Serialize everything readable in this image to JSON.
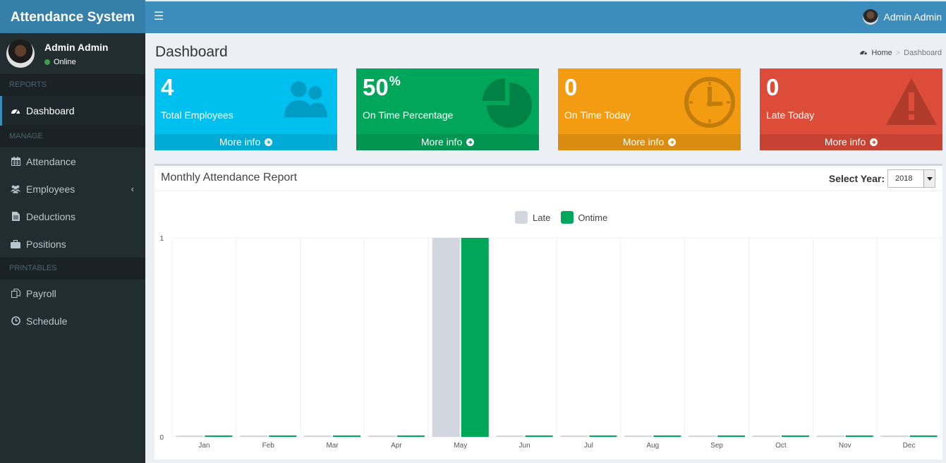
{
  "app": {
    "title": "Attendance System"
  },
  "navbar": {
    "user_name": "Admin Admin"
  },
  "sidebar": {
    "user": {
      "name": "Admin Admin",
      "status": "Online"
    },
    "sections": {
      "reports": "REPORTS",
      "manage": "MANAGE",
      "printables": "PRINTABLES"
    },
    "items": {
      "dashboard": "Dashboard",
      "attendance": "Attendance",
      "employees": "Employees",
      "deductions": "Deductions",
      "positions": "Positions",
      "payroll": "Payroll",
      "schedule": "Schedule"
    }
  },
  "page": {
    "title": "Dashboard",
    "breadcrumb": {
      "home": "Home",
      "current": "Dashboard"
    }
  },
  "tiles": [
    {
      "value": "4",
      "suffix": "",
      "label": "Total Employees",
      "footer": "More info",
      "color": "#00c0ef",
      "icon": "users-icon"
    },
    {
      "value": "50",
      "suffix": "%",
      "label": "On Time Percentage",
      "footer": "More info",
      "color": "#00a65a",
      "icon": "pie-chart-icon"
    },
    {
      "value": "0",
      "suffix": "",
      "label": "On Time Today",
      "footer": "More info",
      "color": "#f39c12",
      "icon": "clock-icon"
    },
    {
      "value": "0",
      "suffix": "",
      "label": "Late Today",
      "footer": "More info",
      "color": "#dd4b39",
      "icon": "warning-icon"
    }
  ],
  "report": {
    "title": "Monthly Attendance Report",
    "year_label": "Select Year:",
    "year": "2018"
  },
  "chart_data": {
    "type": "bar",
    "categories": [
      "Jan",
      "Feb",
      "Mar",
      "Apr",
      "May",
      "Jun",
      "Jul",
      "Aug",
      "Sep",
      "Oct",
      "Nov",
      "Dec"
    ],
    "series": [
      {
        "name": "Late",
        "color": "#d2d6de",
        "values": [
          0,
          0,
          0,
          0,
          1,
          0,
          0,
          0,
          0,
          0,
          0,
          0
        ]
      },
      {
        "name": "Ontime",
        "color": "#00a65a",
        "values": [
          0,
          0,
          0,
          0,
          1,
          0,
          0,
          0,
          0,
          0,
          0,
          0
        ]
      }
    ],
    "ylim": [
      0,
      1
    ],
    "yticks": [
      "0",
      "1"
    ],
    "legend": "top-center",
    "grid": true
  }
}
